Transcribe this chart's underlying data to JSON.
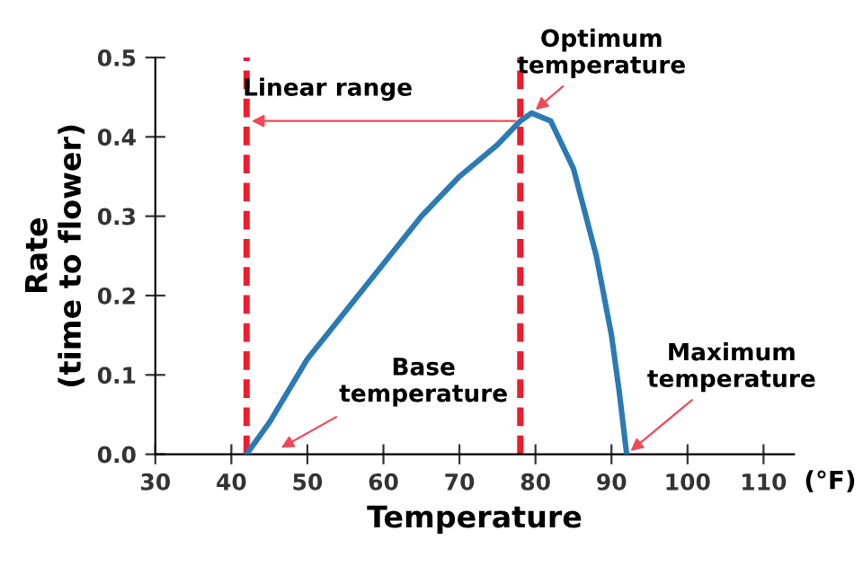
{
  "chart_data": {
    "type": "line",
    "xlabel": "Temperature",
    "ylabel": "Rate\n(time to flower)",
    "x": [
      42,
      45,
      50,
      55,
      60,
      65,
      70,
      75,
      78,
      79.5,
      82,
      85,
      88,
      90,
      91,
      92
    ],
    "series": [
      {
        "color": "#2b7ab4",
        "values": [
          0,
          0.04,
          0.12,
          0.18,
          0.24,
          0.3,
          0.35,
          0.39,
          0.42,
          0.43,
          0.42,
          0.36,
          0.25,
          0.15,
          0.08,
          0
        ]
      }
    ],
    "xlim": [
      30,
      114
    ],
    "xticks": [
      30,
      40,
      50,
      60,
      70,
      80,
      90,
      100,
      110
    ],
    "ylim": [
      0,
      0.5
    ],
    "yticks": [
      {
        "value": 0,
        "label": "0.0"
      },
      0.1,
      0.2,
      0.3,
      0.4,
      0.5
    ],
    "ref_lines": [
      {
        "axis": "x",
        "value": 42,
        "color": "#ee1c2e",
        "line_style": "dashed"
      },
      {
        "axis": "x",
        "value": 78,
        "color": "#ee1c2e",
        "line_style": "dashed"
      }
    ],
    "annotations": [
      "Linear range",
      {
        "text": "Optimum\ntemperature",
        "x": 79.5,
        "y": 0.43
      },
      "Base\ntemperature",
      {
        "text": "Maximum\ntemperature",
        "x": 92,
        "y": 0
      },
      "(°F)"
    ],
    "grid": false,
    "marker": "none",
    "line_style": "solid"
  }
}
